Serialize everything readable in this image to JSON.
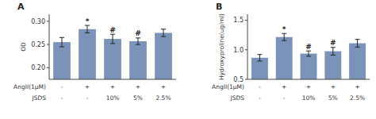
{
  "chart_data": [
    {
      "type": "bar",
      "title": "A",
      "ylabel": "OD",
      "ylim": [
        0.175,
        0.315
      ],
      "yticks": [
        {
          "value": 0.2,
          "label": "0.20"
        },
        0.25,
        {
          "value": 0.3,
          "label": "0.30"
        }
      ],
      "values": [
        0.255,
        0.283,
        0.262,
        0.257,
        0.275
      ],
      "errors": [
        0.01,
        0.008,
        0.01,
        0.007,
        0.008
      ],
      "annotations": [
        null,
        "*",
        "#",
        "#",
        null
      ],
      "category_rows": [
        {
          "name": "AngII(1μM)",
          "labels": [
            "-",
            "+",
            "+",
            "+",
            "+"
          ]
        },
        {
          "name": "JSDS",
          "labels": [
            "-",
            "-",
            "10%",
            "5%",
            "2.5%"
          ]
        }
      ],
      "grid": false
    },
    {
      "type": "bar",
      "title": "B",
      "ylabel": "Hydroxyproline(ug/ml)",
      "ylim": [
        0.5,
        1.6
      ],
      "yticks": [
        0.5,
        {
          "value": 1.0,
          "label": "1.0"
        },
        1.5
      ],
      "values": [
        0.865,
        1.215,
        0.935,
        0.975,
        1.11
      ],
      "errors": [
        0.055,
        0.06,
        0.045,
        0.065,
        0.065
      ],
      "annotations": [
        null,
        "*",
        "#",
        "#",
        null
      ],
      "category_rows": [
        {
          "name": "AngII(1μM)",
          "labels": [
            "-",
            "+",
            "+",
            "+",
            "+"
          ]
        },
        {
          "name": "JSDS",
          "labels": [
            "-",
            "-",
            "10%",
            "5%",
            "2.5%"
          ]
        }
      ],
      "grid": false
    }
  ]
}
